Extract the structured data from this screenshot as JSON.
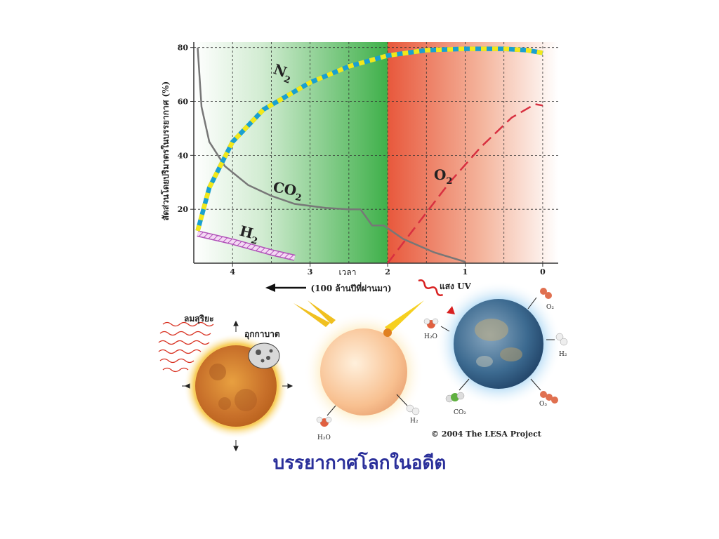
{
  "page": {
    "title": "บรรยากาศโลกในอดีต"
  },
  "chart_data": {
    "type": "line",
    "ylabel": "สัดส่วนโดยปริมาตรในบรรยากาศ (%)",
    "xlabel": "เวลา",
    "xlabel_note": "(100 ล้านปีที่ผ่านมา)",
    "xlim": [
      4.5,
      -0.2
    ],
    "ylim": [
      0,
      82
    ],
    "x_ticks": [
      "4",
      "3",
      "2",
      "1",
      "0"
    ],
    "y_ticks": [
      "20",
      "40",
      "60",
      "80"
    ],
    "grid": true,
    "series": [
      {
        "name": "N2",
        "label_main": "N",
        "label_sub": "2",
        "x": [
          4.45,
          4.3,
          4.0,
          3.6,
          3.0,
          2.5,
          2.0,
          1.5,
          1.0,
          0.5,
          0.2,
          0.0
        ],
        "y": [
          12,
          28,
          45,
          57,
          67,
          73,
          77,
          79,
          79.5,
          79.5,
          79,
          78
        ]
      },
      {
        "name": "CO2",
        "label_main": "CO",
        "label_sub": "2",
        "x": [
          4.45,
          4.4,
          4.3,
          4.1,
          3.8,
          3.5,
          3.2,
          2.8,
          2.5,
          2.35,
          2.2,
          2.05,
          1.8,
          1.4,
          1.0
        ],
        "y": [
          80,
          58,
          45,
          36,
          29,
          25,
          22,
          20.5,
          20,
          20,
          14,
          14,
          9,
          4,
          0.5
        ]
      },
      {
        "name": "H2",
        "label_main": "H",
        "label_sub": "2",
        "x": [
          4.45,
          4.0,
          3.5,
          3.2
        ],
        "y": [
          11,
          8,
          4,
          2
        ]
      },
      {
        "name": "O2",
        "label_main": "O",
        "label_sub": "2",
        "x": [
          2.0,
          1.6,
          1.2,
          0.8,
          0.4,
          0.1,
          0.0
        ],
        "y": [
          0,
          15,
          30,
          43,
          54,
          59,
          58.5
        ]
      }
    ]
  },
  "illustration": {
    "left": {
      "solar_wind": "ลมสุริยะ",
      "meteor": "อุกกาบาต"
    },
    "middle": {
      "h2o": "H₂O",
      "h2": "H₂"
    },
    "right": {
      "uv": "แสง UV",
      "o2": "O₂",
      "h2o": "H₂O",
      "h2": "H₂",
      "co2": "CO₂",
      "o3": "O₃"
    },
    "copyright": "© 2004  The LESA Project"
  },
  "colors": {
    "n2_blue": "#1aa0d0",
    "n2_yellow": "#f2e81a",
    "co2": "#777777",
    "h2": "#c070c8",
    "o2": "#d83040",
    "title": "#2a2f9a"
  }
}
